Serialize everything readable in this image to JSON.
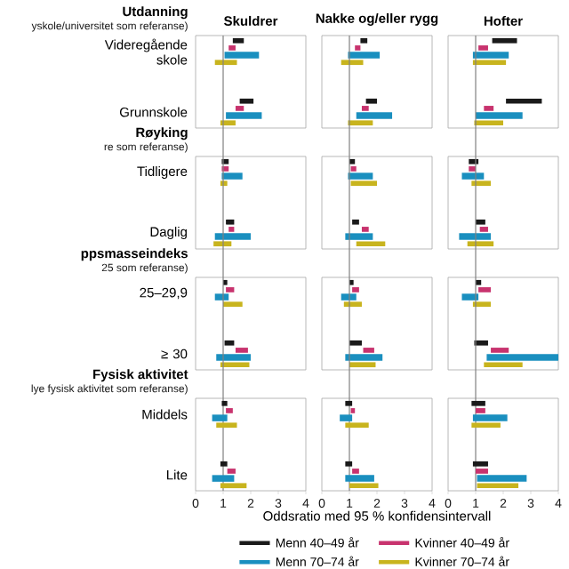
{
  "chart_data": [
    {
      "type": "bar",
      "orientation": "horizontal",
      "title": "Skuldrer",
      "categories": [
        "Videregående skole",
        "Grunnskole",
        "Tidligere",
        "Daglig",
        "25–29,9",
        "≥ 30",
        "Middels",
        "Lite"
      ],
      "annotations": [
        "Utdanning",
        "yskole/universitet som referanse)",
        "Røyking",
        "re som referanse)",
        "ppsmasseindeks",
        "25 som referanse)",
        "Fysisk aktivitet",
        "lye fysisk aktivitet som referanse)"
      ],
      "xlim": [
        0,
        4
      ],
      "xticks": [
        0,
        1,
        2,
        3,
        4
      ],
      "legend": "bottom",
      "ref_lines": [
        {
          "axis": "x",
          "value": 1,
          "color": "#808080"
        }
      ],
      "series": [
        {
          "name": "Menn 40–49 år",
          "color": "#1a1a1a",
          "base": [
            1.35,
            1.6,
            0.95,
            1.1,
            1.0,
            1.05,
            0.95,
            0.9
          ],
          "values": [
            0.4,
            0.5,
            0.25,
            0.3,
            0.15,
            0.35,
            0.2,
            0.25
          ]
        },
        {
          "name": "Kvinner 40–49 år",
          "color": "#c8336e",
          "base": [
            1.2,
            1.45,
            0.95,
            1.2,
            1.1,
            1.45,
            1.1,
            1.15
          ],
          "values": [
            0.25,
            0.3,
            0.25,
            0.2,
            0.3,
            0.45,
            0.25,
            0.3
          ]
        },
        {
          "name": "Menn 70–74 år",
          "color": "#1a8fbf",
          "base": [
            1.05,
            1.1,
            0.95,
            0.7,
            0.7,
            0.75,
            0.6,
            0.6
          ],
          "values": [
            1.25,
            1.3,
            0.75,
            1.3,
            0.5,
            1.25,
            0.55,
            0.8
          ]
        },
        {
          "name": "Kvinner 70–74 år",
          "color": "#c8b41e",
          "base": [
            0.7,
            0.9,
            0.9,
            0.65,
            1.0,
            0.9,
            0.75,
            0.9
          ],
          "values": [
            0.8,
            0.55,
            0.25,
            0.65,
            0.7,
            1.05,
            0.75,
            0.95
          ]
        }
      ]
    },
    {
      "type": "bar",
      "orientation": "horizontal",
      "title": "Nakke og/eller rygg",
      "categories": [
        null,
        null,
        null,
        null,
        null,
        null,
        null,
        null
      ],
      "xlabel": "Oddsratio med 95 % konfidensintervall",
      "xlim": [
        0,
        4
      ],
      "xticks": [
        0,
        1,
        2,
        3,
        4
      ],
      "tick_labels": "x",
      "ref_lines": [
        {
          "axis": "x",
          "value": 1,
          "color": "#808080"
        }
      ],
      "series": [
        {
          "color": "#1a1a1a",
          "base": [
            1.4,
            1.6,
            1.0,
            1.1,
            1.0,
            1.0,
            0.85,
            0.85
          ],
          "values": [
            0.25,
            0.4,
            0.2,
            0.25,
            0.15,
            0.45,
            0.25,
            0.25
          ]
        },
        {
          "color": "#c8336e",
          "base": [
            1.2,
            1.45,
            1.05,
            1.45,
            1.1,
            1.5,
            1.05,
            1.1
          ],
          "values": [
            0.2,
            0.25,
            0.2,
            0.25,
            0.25,
            0.4,
            0.15,
            0.25
          ]
        },
        {
          "color": "#1a8fbf",
          "base": [
            0.95,
            1.25,
            0.95,
            0.85,
            0.7,
            0.85,
            0.65,
            0.85
          ],
          "values": [
            1.15,
            1.3,
            0.9,
            1.0,
            0.55,
            1.35,
            0.45,
            1.05
          ]
        },
        {
          "color": "#c8b41e",
          "base": [
            0.7,
            0.95,
            1.05,
            1.25,
            0.8,
            1.0,
            0.85,
            1.0
          ],
          "values": [
            0.8,
            0.9,
            0.95,
            1.05,
            0.65,
            0.95,
            0.85,
            1.05
          ]
        }
      ]
    },
    {
      "type": "bar",
      "orientation": "horizontal",
      "title": "Hofter",
      "categories": [
        null,
        null,
        null,
        null,
        null,
        null,
        null,
        null
      ],
      "xlim": [
        0,
        4
      ],
      "xticks": [
        0,
        1,
        2,
        3,
        4
      ],
      "tick_labels": "x",
      "ref_lines": [
        {
          "axis": "x",
          "value": 1,
          "color": "#808080"
        }
      ],
      "series": [
        {
          "color": "#1a1a1a",
          "base": [
            1.6,
            2.1,
            0.75,
            1.0,
            1.0,
            0.95,
            0.85,
            0.9
          ],
          "values": [
            0.9,
            1.3,
            0.35,
            0.35,
            0.2,
            0.5,
            0.5,
            0.55
          ]
        },
        {
          "color": "#c8336e",
          "base": [
            1.1,
            1.3,
            0.75,
            1.15,
            1.1,
            1.55,
            1.0,
            1.0
          ],
          "values": [
            0.35,
            0.35,
            0.25,
            0.3,
            0.45,
            0.65,
            0.35,
            0.45
          ]
        },
        {
          "color": "#1a8fbf",
          "base": [
            0.9,
            1.0,
            0.5,
            0.4,
            0.5,
            1.4,
            0.9,
            1.05
          ],
          "values": [
            1.3,
            1.7,
            0.8,
            1.15,
            0.6,
            2.6,
            1.25,
            1.8
          ]
        },
        {
          "color": "#c8b41e",
          "base": [
            0.9,
            0.95,
            0.85,
            0.7,
            0.9,
            1.3,
            0.85,
            1.05
          ],
          "values": [
            1.2,
            1.05,
            0.7,
            0.95,
            0.65,
            1.4,
            1.05,
            1.5
          ]
        }
      ]
    }
  ]
}
